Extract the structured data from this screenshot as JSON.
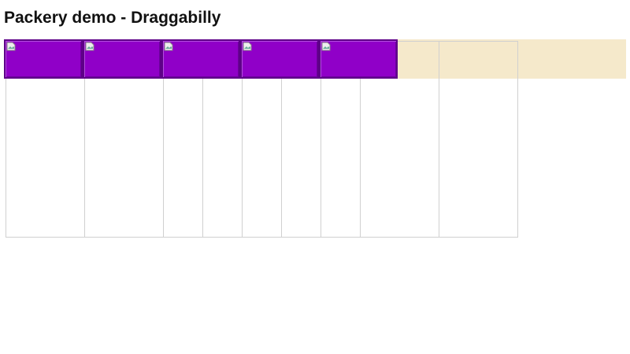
{
  "header": {
    "title": "Packery demo - Draggabilly"
  }
}
